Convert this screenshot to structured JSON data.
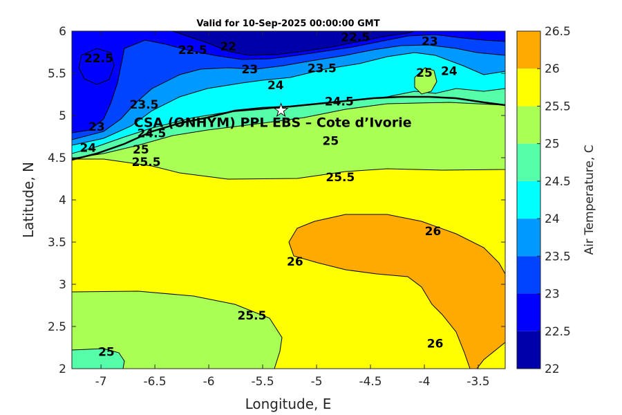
{
  "chart_data": {
    "type": "contour",
    "title": "Valid for 10-Sep-2025 00:00:00 GMT",
    "xlabel": "Longitude, E",
    "ylabel": "Latitude, N",
    "xlim": [
      -7.27,
      -3.25
    ],
    "ylim": [
      2,
      6
    ],
    "xticks": [
      -7,
      -6.5,
      -6,
      -5.5,
      -5,
      -4.5,
      -4,
      -3.5
    ],
    "xtick_labels": [
      "-7",
      "-6.5",
      "-6",
      "-5.5",
      "-5",
      "-4.5",
      "-4",
      "-3.5"
    ],
    "yticks": [
      2,
      2.5,
      3,
      3.5,
      4,
      4.5,
      5,
      5.5,
      6
    ],
    "ytick_labels": [
      "2",
      "2.5",
      "3",
      "3.5",
      "4",
      "4.5",
      "5",
      "5.5",
      "6"
    ],
    "colorbar": {
      "label": "Air Temperature, C",
      "levels": [
        22,
        22.5,
        23,
        23.5,
        24,
        24.5,
        25,
        25.5,
        26,
        26.5
      ],
      "tick_labels": [
        "22",
        "22.5",
        "23",
        "23.5",
        "24",
        "24.5",
        "25",
        "25.5",
        "26",
        "26.5"
      ],
      "colors": [
        "#0000aa",
        "#0000ff",
        "#0044ff",
        "#0099ff",
        "#00ffff",
        "#55ffaa",
        "#aaff55",
        "#ffff00",
        "#ffaa00",
        "#ff5500"
      ]
    },
    "site": {
      "name": "CSA (ONHYM) PPL EBS  – Cote d’Ivorie",
      "lon": -5.33,
      "lat": 5.06,
      "marker": "star"
    },
    "contour_labels": [
      {
        "text": "22.5",
        "lon": -7.02,
        "lat": 5.68
      },
      {
        "text": "22.5",
        "lon": -6.15,
        "lat": 5.78
      },
      {
        "text": "22",
        "lon": -5.82,
        "lat": 5.82
      },
      {
        "text": "22.5",
        "lon": -4.64,
        "lat": 5.93
      },
      {
        "text": "23",
        "lon": -3.95,
        "lat": 5.88
      },
      {
        "text": "23",
        "lon": -5.62,
        "lat": 5.55
      },
      {
        "text": "23.5",
        "lon": -4.95,
        "lat": 5.56
      },
      {
        "text": "24",
        "lon": -3.77,
        "lat": 5.53
      },
      {
        "text": "25",
        "lon": -4.0,
        "lat": 5.51
      },
      {
        "text": "24",
        "lon": -5.38,
        "lat": 5.36
      },
      {
        "text": "24.5",
        "lon": -4.79,
        "lat": 5.17
      },
      {
        "text": "23.5",
        "lon": -6.6,
        "lat": 5.13
      },
      {
        "text": "23",
        "lon": -7.04,
        "lat": 4.87
      },
      {
        "text": "24.5",
        "lon": -6.53,
        "lat": 4.79
      },
      {
        "text": "24",
        "lon": -7.12,
        "lat": 4.62
      },
      {
        "text": "25",
        "lon": -6.63,
        "lat": 4.6
      },
      {
        "text": "25",
        "lon": -4.87,
        "lat": 4.7
      },
      {
        "text": "25.5",
        "lon": -6.58,
        "lat": 4.45
      },
      {
        "text": "25.5",
        "lon": -4.78,
        "lat": 4.27
      },
      {
        "text": "26",
        "lon": -3.92,
        "lat": 3.63
      },
      {
        "text": "26",
        "lon": -5.2,
        "lat": 3.27
      },
      {
        "text": "25.5",
        "lon": -5.6,
        "lat": 2.63
      },
      {
        "text": "26",
        "lon": -3.9,
        "lat": 2.3
      },
      {
        "text": "25",
        "lon": -6.95,
        "lat": 2.2
      }
    ]
  }
}
